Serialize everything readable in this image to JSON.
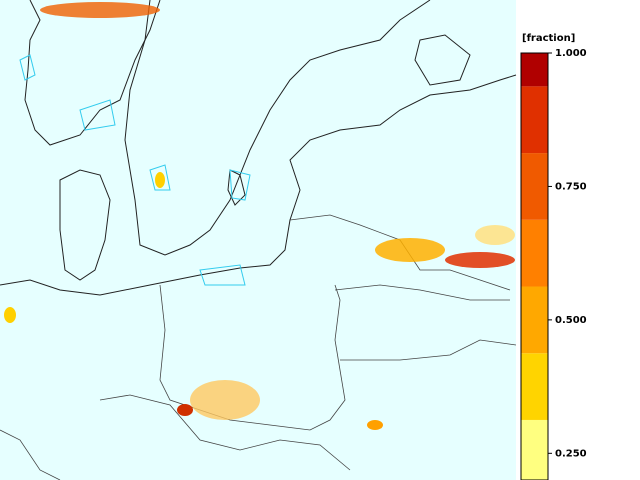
{
  "colorbar": {
    "unit": "[fraction]",
    "lim": [
      0.2,
      1.0
    ],
    "levels": [
      0.2,
      0.3125,
      0.4375,
      0.5625,
      0.6875,
      0.8125,
      0.9375,
      1.0
    ],
    "colors": [
      "#ffff80",
      "#ffd400",
      "#ffa800",
      "#ff8000",
      "#f05a00",
      "#e03000",
      "#b00000"
    ],
    "ticks": [
      {
        "value": 1.0,
        "label": "1.000"
      },
      {
        "value": 0.75,
        "label": "0.750"
      },
      {
        "value": 0.5,
        "label": "0.500"
      },
      {
        "value": 0.25,
        "label": "0.250"
      }
    ]
  }
}
